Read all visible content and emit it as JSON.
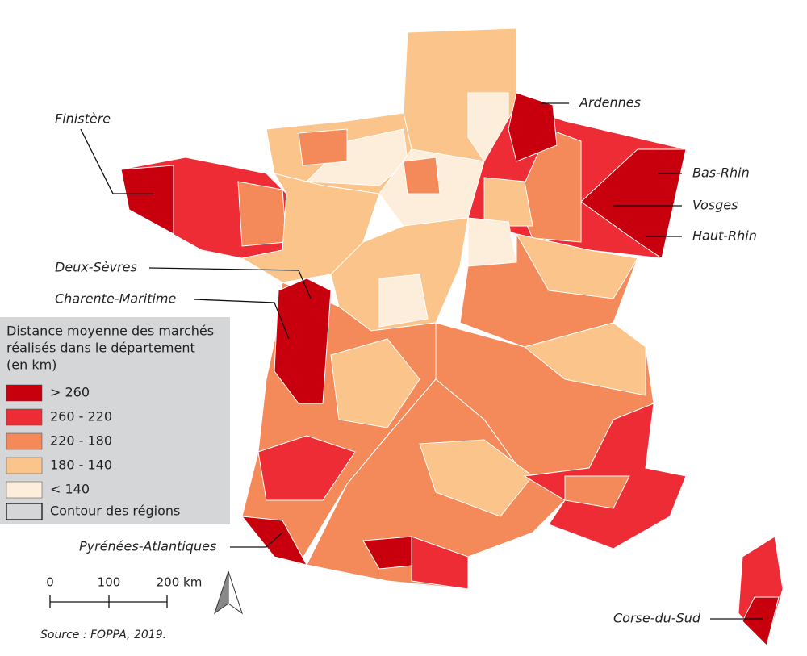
{
  "legend": {
    "title": [
      "Distance moyenne des marchés",
      "réalisés dans le département",
      "(en km)"
    ],
    "items": [
      {
        "label": "> 260",
        "color": "#c8000e"
      },
      {
        "label": "260 - 220",
        "color": "#ee2c36"
      },
      {
        "label": "220 - 180",
        "color": "#f4895a"
      },
      {
        "label": "180 - 140",
        "color": "#fbc48a"
      },
      {
        "label": "< 140",
        "color": "#fdeedc"
      }
    ],
    "contour": "Contour des régions"
  },
  "labels": [
    "Finistère",
    "Ardennes",
    "Bas-Rhin",
    "Vosges",
    "Haut-Rhin",
    "Deux-Sèvres",
    "Charente-Maritime",
    "Pyrénées-Atlantiques",
    "Corse-du-Sud"
  ],
  "scale": [
    "0",
    "100",
    "200 km"
  ],
  "source": "Source : FOPPA, 2019."
}
